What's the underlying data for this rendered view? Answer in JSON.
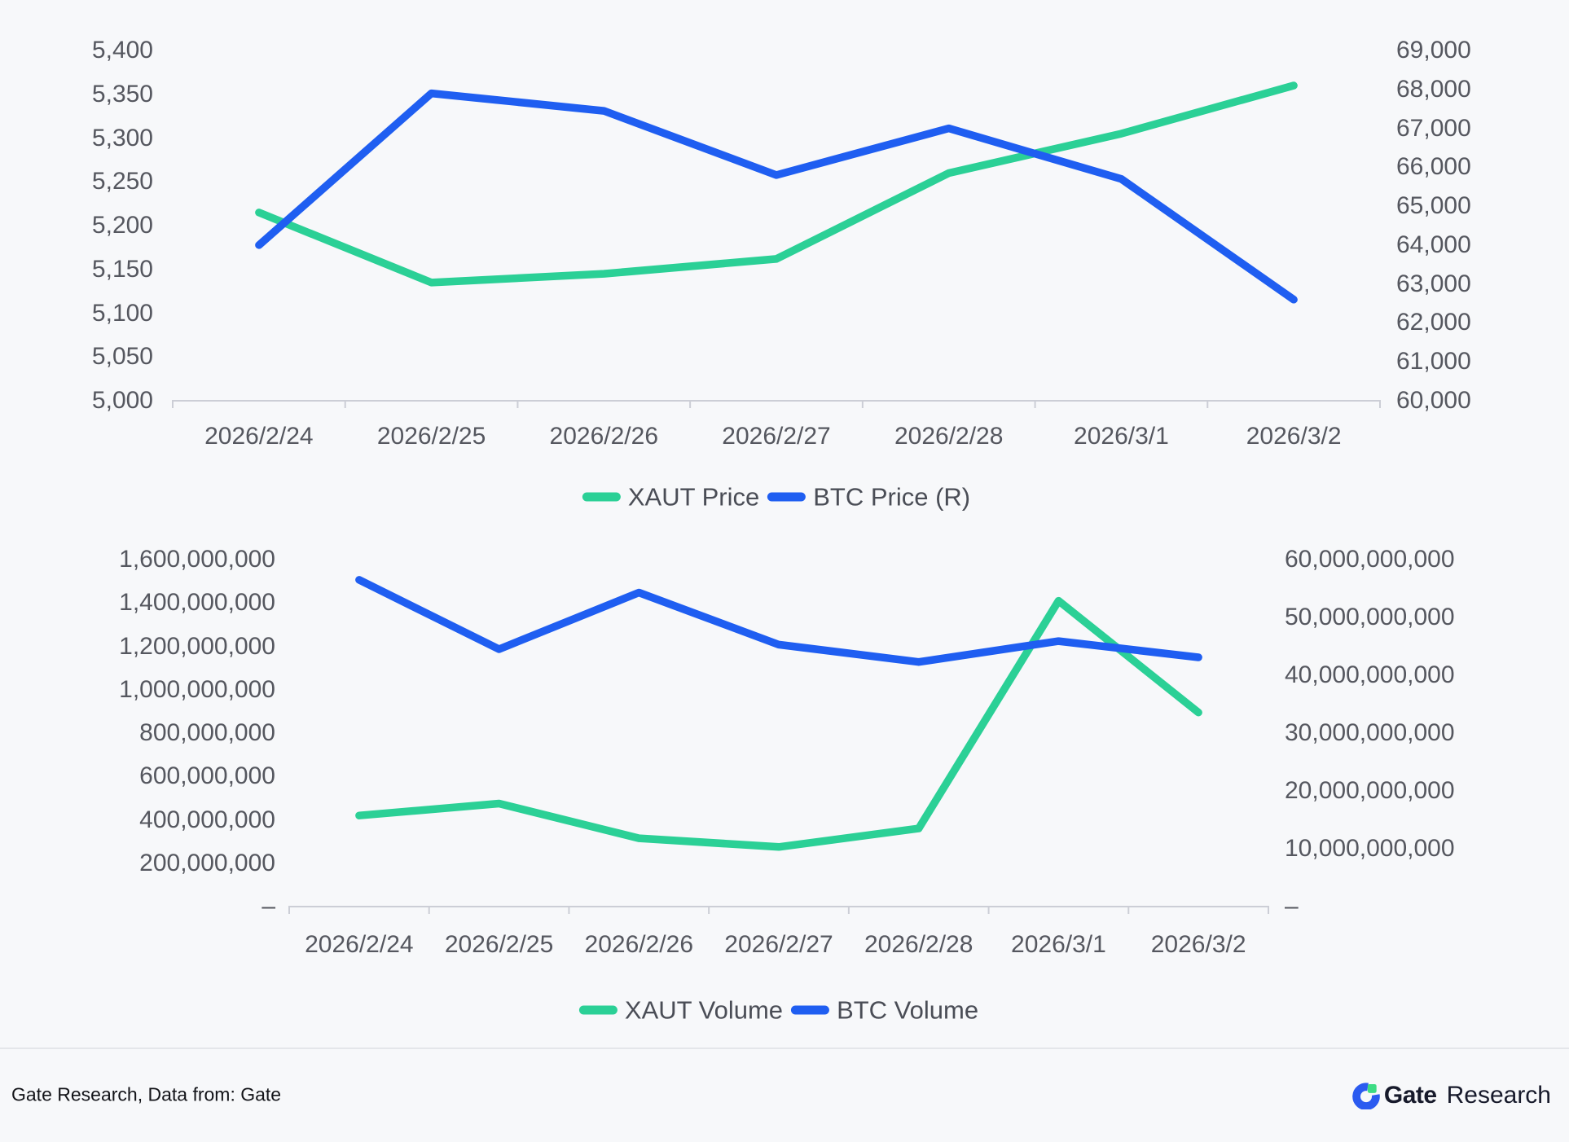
{
  "colors": {
    "background": "#f7f8fa",
    "axis_line": "#ccced6",
    "axis_text": "#55575f",
    "legend_text": "#4a4d56",
    "xaut_green": "#2bd096",
    "btc_blue": "#1f5ef1"
  },
  "chart_data": [
    {
      "type": "line",
      "id": "price",
      "categories": [
        "2026/2/24",
        "2026/2/25",
        "2026/2/26",
        "2026/2/27",
        "2026/2/28",
        "2026/3/1",
        "2026/3/2"
      ],
      "left_axis": {
        "min": 5000,
        "max": 5400,
        "labels": [
          "5,000",
          "5,050",
          "5,100",
          "5,150",
          "5,200",
          "5,250",
          "5,300",
          "5,350",
          "5,400"
        ]
      },
      "right_axis": {
        "min": 60000,
        "max": 69000,
        "labels": [
          "60,000",
          "61,000",
          "62,000",
          "63,000",
          "64,000",
          "65,000",
          "66,000",
          "67,000",
          "68,000",
          "69,000"
        ]
      },
      "grid": false,
      "legend_position": "bottom",
      "series": [
        {
          "name": "XAUT Price",
          "axis": "left",
          "color": "#2bd096",
          "values": [
            5215,
            5135,
            5145,
            5162,
            5260,
            5305,
            5360
          ]
        },
        {
          "name": "BTC Price (R)",
          "axis": "right",
          "color": "#1f5ef1",
          "values": [
            64000,
            67900,
            67450,
            65800,
            67000,
            65700,
            62600
          ]
        }
      ]
    },
    {
      "type": "line",
      "id": "volume",
      "categories": [
        "2026/2/24",
        "2026/2/25",
        "2026/2/26",
        "2026/2/27",
        "2026/2/28",
        "2026/3/1",
        "2026/3/2"
      ],
      "left_axis": {
        "min": 0,
        "max": 1600000000,
        "labels": [
          "–",
          "200,000,000",
          "400,000,000",
          "600,000,000",
          "800,000,000",
          "1,000,000,000",
          "1,200,000,000",
          "1,400,000,000",
          "1,600,000,000"
        ]
      },
      "right_axis": {
        "min": 0,
        "max": 60000000000,
        "labels": [
          "–",
          "10,000,000,000",
          "20,000,000,000",
          "30,000,000,000",
          "40,000,000,000",
          "50,000,000,000",
          "60,000,000,000"
        ]
      },
      "grid": false,
      "legend_position": "bottom",
      "series": [
        {
          "name": "XAUT Volume",
          "axis": "left",
          "color": "#2bd096",
          "values": [
            420000000,
            475000000,
            315000000,
            275000000,
            360000000,
            1410000000,
            895000000
          ]
        },
        {
          "name": "BTC Volume",
          "axis": "right",
          "color": "#1f5ef1",
          "values": [
            56500000000,
            44500000000,
            54300000000,
            45300000000,
            42300000000,
            45900000000,
            43100000000
          ]
        }
      ]
    }
  ],
  "footer": {
    "source_text": "Gate Research, Data from: Gate",
    "logo_bold": "Gate",
    "logo_regular": "Research"
  }
}
